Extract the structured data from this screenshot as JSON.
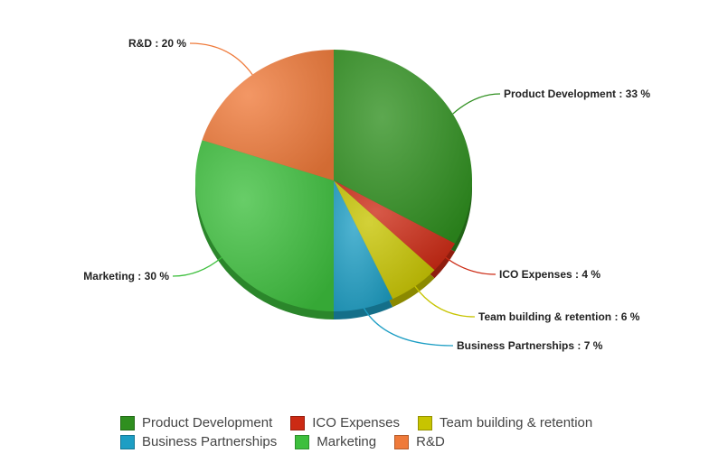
{
  "chart_data": {
    "type": "pie",
    "title": "",
    "slices": [
      {
        "name": "Product Development",
        "value": 33,
        "color": "#2f8f1f",
        "callout": "Product Development : 33 %"
      },
      {
        "name": "ICO Expenses",
        "value": 4,
        "color": "#cc2a14",
        "callout": "ICO Expenses : 4 %"
      },
      {
        "name": "Team building & retention",
        "value": 6,
        "color": "#c7c400",
        "callout": "Team building & retention : 6 %"
      },
      {
        "name": "Business Partnerships",
        "value": 7,
        "color": "#1d9ec4",
        "callout": "Business Partnerships : 7 %"
      },
      {
        "name": "Marketing",
        "value": 30,
        "color": "#3dbf3d",
        "callout": "Marketing : 30 %"
      },
      {
        "name": "R&D",
        "value": 20,
        "color": "#ef7a3a",
        "callout": "R&D : 20 %"
      }
    ],
    "legend_position": "bottom"
  },
  "legend": {
    "rows": [
      [
        {
          "label": "Product Development",
          "color": "#2f8f1f"
        },
        {
          "label": "ICO Expenses",
          "color": "#cc2a14"
        },
        {
          "label": "Team building & retention",
          "color": "#c7c400"
        }
      ],
      [
        {
          "label": "Business Partnerships",
          "color": "#1d9ec4"
        },
        {
          "label": "Marketing",
          "color": "#3dbf3d"
        },
        {
          "label": "R&D",
          "color": "#ef7a3a"
        }
      ]
    ]
  }
}
